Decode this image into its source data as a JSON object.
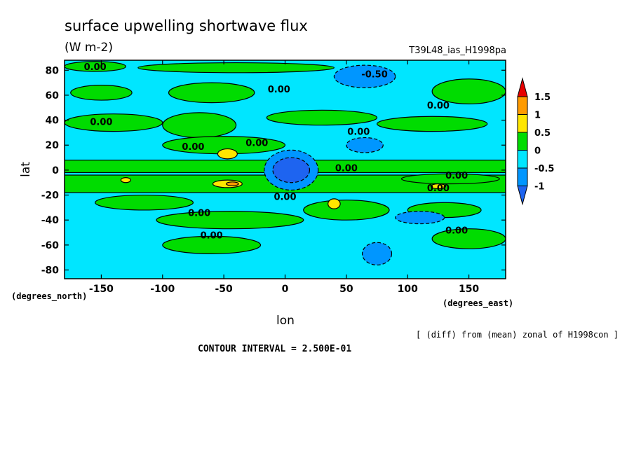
{
  "chart_data": {
    "type": "heatmap",
    "title": "surface upwelling shortwave flux",
    "units": "(W m-2)",
    "run_label": "T39L48_ias_H1998pa",
    "xlabel": "lon",
    "ylabel": "lat",
    "x_unit_label": "(degrees_east)",
    "y_unit_label": "(degrees_north)",
    "xlim": [
      -180,
      180
    ],
    "ylim": [
      -87,
      88
    ],
    "x_ticks": [
      -150,
      -100,
      -50,
      0,
      50,
      100,
      150
    ],
    "x_tick_labels": [
      "-150",
      "-100",
      "-50",
      "0",
      "50",
      "100",
      "150"
    ],
    "y_ticks": [
      80,
      60,
      40,
      20,
      0,
      -20,
      -40,
      -60,
      -80
    ],
    "y_tick_labels": [
      "80",
      "60",
      "40",
      "20",
      "0",
      "-20",
      "-40",
      "-60",
      "-80"
    ],
    "colorbar": {
      "boundaries": [
        -1,
        -0.5,
        0,
        0.5,
        1,
        1.5
      ],
      "labels": [
        "1.5",
        "1",
        "0.5",
        "0",
        "-0.5",
        "-1"
      ],
      "colors": [
        "#1e64f0",
        "#0096ff",
        "#00e6ff",
        "#00dc00",
        "#ffe600",
        "#ff9b00",
        "#e60000"
      ]
    },
    "background_value": -0.25,
    "regions": [
      {
        "shape": "band",
        "lat": [
          -2,
          8
        ],
        "value": 0.25
      },
      {
        "shape": "band",
        "lat": [
          -18,
          -4
        ],
        "value": 0.25
      },
      {
        "shape": "blob",
        "lon": -155,
        "lat": 83,
        "dlon": 25,
        "dlat": 4,
        "value": 0.25
      },
      {
        "shape": "blob",
        "lon": -40,
        "lat": 82,
        "dlon": 80,
        "dlat": 4,
        "value": 0.25
      },
      {
        "shape": "blob",
        "lon": -150,
        "lat": 62,
        "dlon": 25,
        "dlat": 6,
        "value": 0.25
      },
      {
        "shape": "blob",
        "lon": -60,
        "lat": 62,
        "dlon": 35,
        "dlat": 8,
        "value": 0.25
      },
      {
        "shape": "blob",
        "lon": -140,
        "lat": 38,
        "dlon": 40,
        "dlat": 7,
        "value": 0.25
      },
      {
        "shape": "blob",
        "lon": -70,
        "lat": 36,
        "dlon": 30,
        "dlat": 10,
        "value": 0.25
      },
      {
        "shape": "blob",
        "lon": 30,
        "lat": 42,
        "dlon": 45,
        "dlat": 6,
        "value": 0.25
      },
      {
        "shape": "blob",
        "lon": 150,
        "lat": 63,
        "dlon": 30,
        "dlat": 10,
        "value": 0.25
      },
      {
        "shape": "blob",
        "lon": 120,
        "lat": 37,
        "dlon": 45,
        "dlat": 6,
        "value": 0.25
      },
      {
        "shape": "blob",
        "lon": -50,
        "lat": 20,
        "dlon": 50,
        "dlat": 7,
        "value": 0.25
      },
      {
        "shape": "blob",
        "lon": -115,
        "lat": -26,
        "dlon": 40,
        "dlat": 6,
        "value": 0.25
      },
      {
        "shape": "blob",
        "lon": 50,
        "lat": -32,
        "dlon": 35,
        "dlat": 8,
        "value": 0.25
      },
      {
        "shape": "blob",
        "lon": -45,
        "lat": -40,
        "dlon": 60,
        "dlat": 7,
        "value": 0.25
      },
      {
        "shape": "blob",
        "lon": -60,
        "lat": -60,
        "dlon": 40,
        "dlat": 7,
        "value": 0.25
      },
      {
        "shape": "blob",
        "lon": 150,
        "lat": -55,
        "dlon": 30,
        "dlat": 8,
        "value": 0.25
      },
      {
        "shape": "blob",
        "lon": 130,
        "lat": -32,
        "dlon": 30,
        "dlat": 6,
        "value": 0.25
      },
      {
        "shape": "blob",
        "lon": 135,
        "lat": -7,
        "dlon": 40,
        "dlat": 4,
        "value": 0.25
      },
      {
        "shape": "blob",
        "lon": 65,
        "lat": 75,
        "dlon": 25,
        "dlat": 9,
        "value": -0.75
      },
      {
        "shape": "blob",
        "lon": 65,
        "lat": 20,
        "dlon": 15,
        "dlat": 6,
        "value": -0.75
      },
      {
        "shape": "blob",
        "lon": 110,
        "lat": -38,
        "dlon": 20,
        "dlat": 5,
        "value": -0.75
      },
      {
        "shape": "blob",
        "lon": 75,
        "lat": -67,
        "dlon": 12,
        "dlat": 9,
        "value": -0.75
      },
      {
        "shape": "blob",
        "lon": 5,
        "lat": 0,
        "dlon": 22,
        "dlat": 16,
        "value": -0.75
      },
      {
        "shape": "blob",
        "lon": 5,
        "lat": 0,
        "dlon": 15,
        "dlat": 10,
        "value": -1.25
      },
      {
        "shape": "blob",
        "lon": -47,
        "lat": 13,
        "dlon": 8,
        "dlat": 4,
        "value": 0.75
      },
      {
        "shape": "blob",
        "lon": -47,
        "lat": -11,
        "dlon": 12,
        "dlat": 3,
        "value": 0.75
      },
      {
        "shape": "blob",
        "lon": -43,
        "lat": -11,
        "dlon": 5,
        "dlat": 1.5,
        "value": 1.25
      },
      {
        "shape": "blob",
        "lon": -130,
        "lat": -8,
        "dlon": 4,
        "dlat": 2,
        "value": 0.75
      },
      {
        "shape": "blob",
        "lon": 40,
        "lat": -27,
        "dlon": 5,
        "dlat": 4,
        "value": 0.75
      },
      {
        "shape": "blob",
        "lon": 125,
        "lat": -13,
        "dlon": 6,
        "dlat": 2,
        "value": 0.75
      }
    ],
    "contour_labels": [
      {
        "text": "0.00",
        "lon": -155,
        "lat": 83
      },
      {
        "text": "-0.50",
        "lon": 73,
        "lat": 77
      },
      {
        "text": "0.00",
        "lon": -5,
        "lat": 65
      },
      {
        "text": "0.00",
        "lon": 125,
        "lat": 52
      },
      {
        "text": "0.00",
        "lon": -150,
        "lat": 39
      },
      {
        "text": "0.00",
        "lon": 60,
        "lat": 31
      },
      {
        "text": "0.00",
        "lon": -75,
        "lat": 19
      },
      {
        "text": "0.00",
        "lon": -23,
        "lat": 22
      },
      {
        "text": "0.00",
        "lon": 50,
        "lat": 2
      },
      {
        "text": "0.00",
        "lon": 140,
        "lat": -4
      },
      {
        "text": "0.00",
        "lon": 125,
        "lat": -14
      },
      {
        "text": "0.00",
        "lon": 0,
        "lat": -21
      },
      {
        "text": "0.00",
        "lon": -70,
        "lat": -34
      },
      {
        "text": "0.00",
        "lon": -60,
        "lat": -52
      },
      {
        "text": "0.00",
        "lon": 140,
        "lat": -48
      }
    ],
    "contour_interval": "CONTOUR INTERVAL = 2.500E-01",
    "footnote": "[ (diff) from (mean) zonal of H1998con ]"
  }
}
